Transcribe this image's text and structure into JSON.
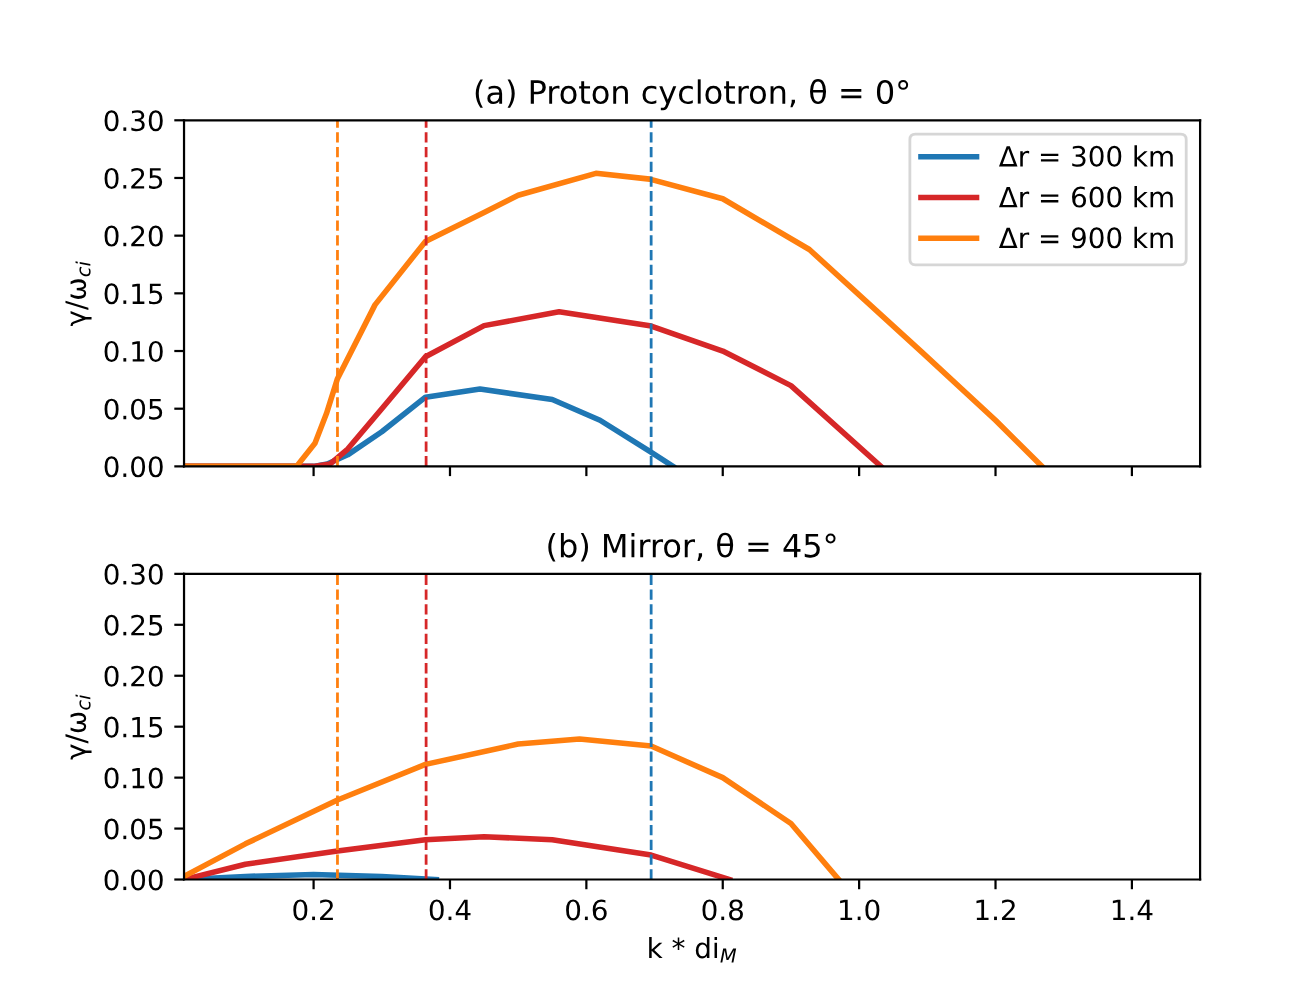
{
  "chart_data": [
    {
      "type": "line",
      "title": "(a) Proton cyclotron, θ = 0°",
      "ylabel": "γ/ω$_{ci}$",
      "xlim": [
        0.01,
        1.5
      ],
      "xticks": [
        0.2,
        0.4,
        0.6,
        0.8,
        1.0,
        1.2,
        1.4
      ],
      "ylim": [
        0,
        0.3
      ],
      "yticks": [
        {
          "value": 0,
          "label": "0.00"
        },
        0.05,
        {
          "value": 0.1,
          "label": "0.10"
        },
        0.15,
        {
          "value": 0.2,
          "label": "0.20"
        },
        0.25,
        {
          "value": 0.3,
          "label": "0.30"
        }
      ],
      "tick_labels": "y",
      "grid": false,
      "legend": "top right",
      "marker": "none",
      "line_style": "solid",
      "series": [
        {
          "name": "Δr = 300 km",
          "color": "#1f77b4",
          "x": [
            0.01,
            0.2,
            0.22,
            0.25,
            0.3,
            0.364,
            0.444,
            0.55,
            0.62,
            0.693,
            0.727
          ],
          "values": [
            0,
            0,
            0.002,
            0.01,
            0.03,
            0.06,
            0.067,
            0.058,
            0.04,
            0.013,
            0
          ]
        },
        {
          "name": "Δr = 600 km",
          "color": "#d62728",
          "x": [
            0.01,
            0.2,
            0.224,
            0.25,
            0.3,
            0.364,
            0.45,
            0.56,
            0.693,
            0.8,
            0.9,
            1.032
          ],
          "values": [
            0,
            0,
            0.002,
            0.015,
            0.05,
            0.095,
            0.122,
            0.134,
            0.122,
            0.1,
            0.07,
            0
          ]
        },
        {
          "name": "Δr = 900 km",
          "color": "#ff7f0e",
          "x": [
            0.01,
            0.175,
            0.202,
            0.219,
            0.235,
            0.29,
            0.364,
            0.45,
            0.5,
            0.614,
            0.693,
            0.8,
            0.927,
            1.092,
            1.2,
            1.268
          ],
          "values": [
            0,
            0,
            0.02,
            0.046,
            0.076,
            0.14,
            0.195,
            0.22,
            0.235,
            0.254,
            0.249,
            0.232,
            0.188,
            0.099,
            0.04,
            0
          ]
        }
      ],
      "ref_lines": [
        {
          "axis": "x",
          "value": 0.235,
          "color": "#ff7f0e",
          "line_style": "dashed"
        },
        {
          "axis": "x",
          "value": 0.365,
          "color": "#d62728",
          "line_style": "dashed"
        },
        {
          "axis": "x",
          "value": 0.695,
          "color": "#1f77b4",
          "line_style": "dashed"
        }
      ]
    },
    {
      "type": "line",
      "title": "(b) Mirror, θ = 45°",
      "ylabel": "γ/ω$_{ci}$",
      "xlabel": "k * di$_{M}$",
      "xlim": [
        0.01,
        1.5
      ],
      "xticks": [
        0.2,
        0.4,
        0.6,
        0.8,
        {
          "value": 1.0,
          "label": "1.0"
        },
        1.2,
        1.4
      ],
      "ylim": [
        0,
        0.3
      ],
      "yticks": [
        {
          "value": 0,
          "label": "0.00"
        },
        0.05,
        {
          "value": 0.1,
          "label": "0.10"
        },
        0.15,
        {
          "value": 0.2,
          "label": "0.20"
        },
        0.25,
        {
          "value": 0.3,
          "label": "0.30"
        }
      ],
      "grid": false,
      "marker": "none",
      "line_style": "solid",
      "series": [
        {
          "color": "#1f77b4",
          "x": [
            0.01,
            0.1,
            0.2,
            0.3,
            0.38
          ],
          "values": [
            0,
            0.003,
            0.005,
            0.003,
            0
          ]
        },
        {
          "color": "#d62728",
          "x": [
            0.01,
            0.1,
            0.235,
            0.364,
            0.45,
            0.55,
            0.695,
            0.81
          ],
          "values": [
            0,
            0.015,
            0.028,
            0.039,
            0.042,
            0.039,
            0.024,
            0
          ]
        },
        {
          "color": "#ff7f0e",
          "x": [
            0.01,
            0.1,
            0.235,
            0.364,
            0.5,
            0.59,
            0.695,
            0.8,
            0.9,
            0.97
          ],
          "values": [
            0.003,
            0.035,
            0.078,
            0.113,
            0.133,
            0.138,
            0.131,
            0.1,
            0.055,
            0
          ]
        }
      ],
      "ref_lines": [
        {
          "axis": "x",
          "value": 0.235,
          "color": "#ff7f0e",
          "line_style": "dashed"
        },
        {
          "axis": "x",
          "value": 0.365,
          "color": "#d62728",
          "line_style": "dashed"
        },
        {
          "axis": "x",
          "value": 0.695,
          "color": "#1f77b4",
          "line_style": "dashed"
        }
      ]
    }
  ]
}
